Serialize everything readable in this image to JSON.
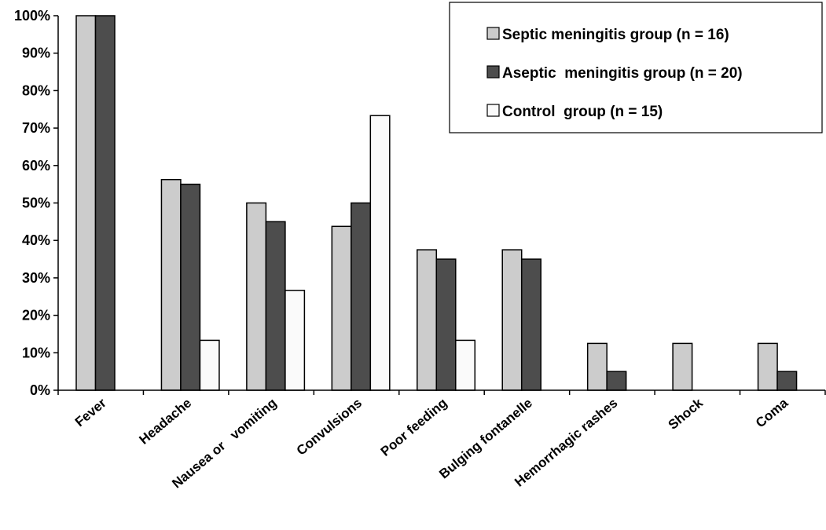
{
  "chart_data": {
    "type": "bar",
    "title": "",
    "xlabel": "",
    "ylabel": "",
    "ylim": [
      0,
      100
    ],
    "y_ticks": [
      "0%",
      "10%",
      "20%",
      "30%",
      "40%",
      "50%",
      "60%",
      "70%",
      "80%",
      "90%",
      "100%"
    ],
    "grid": false,
    "legend_position": "top-right",
    "categories": [
      "Fever",
      "Headache",
      "Nausea or   vomiting",
      "Convulsions",
      "Poor feeding",
      "Bulging fontanelle",
      "Hemorrhagic rashes",
      "Shock",
      "Coma"
    ],
    "series": [
      {
        "name": "Septic meningitis group (n = 16)",
        "color": "#cccccc",
        "values": [
          100,
          56.25,
          50,
          43.75,
          37.5,
          37.5,
          12.5,
          12.5,
          12.5
        ]
      },
      {
        "name": "Aseptic  meningitis group (n = 20)",
        "color": "#4d4d4d",
        "values": [
          100,
          55,
          45,
          50,
          35,
          35,
          5,
          0,
          5
        ]
      },
      {
        "name": "Control  group (n = 15)",
        "color": "#fafafa",
        "values": [
          0,
          13.33,
          26.67,
          73.33,
          13.33,
          0,
          0,
          0,
          0
        ]
      }
    ]
  }
}
